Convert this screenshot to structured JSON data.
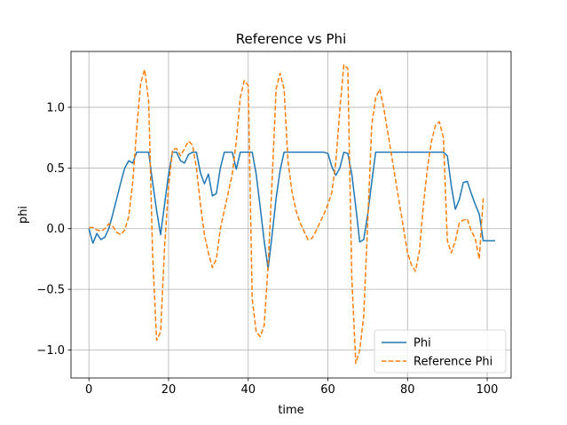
{
  "chart_data": {
    "type": "line",
    "title": "Reference vs Phi",
    "xlabel": "time",
    "ylabel": "phi",
    "xlim": [
      -4.5,
      106
    ],
    "ylim": [
      -1.23,
      1.46
    ],
    "xticks": [
      0,
      20,
      40,
      60,
      80,
      100
    ],
    "xtick_labels": [
      "0",
      "20",
      "40",
      "60",
      "80",
      "100"
    ],
    "yticks": [
      -1.0,
      -0.5,
      0.0,
      0.5,
      1.0
    ],
    "ytick_labels": [
      "−1.0",
      "−0.5",
      "0.0",
      "0.5",
      "1.0"
    ],
    "grid": true,
    "legend_position": "lower right",
    "series": [
      {
        "name": "Phi",
        "color": "#1f77b4",
        "linestyle": "solid",
        "x": [
          0,
          1,
          2,
          3,
          4,
          5,
          6,
          7,
          8,
          9,
          10,
          11,
          12,
          13,
          14,
          15,
          16,
          17,
          18,
          19,
          20,
          21,
          22,
          23,
          24,
          25,
          26,
          27,
          28,
          29,
          30,
          31,
          32,
          33,
          34,
          35,
          36,
          37,
          38,
          39,
          40,
          41,
          42,
          43,
          44,
          45,
          46,
          47,
          48,
          49,
          50,
          51,
          52,
          53,
          54,
          55,
          56,
          57,
          58,
          59,
          60,
          61,
          62,
          63,
          64,
          65,
          66,
          67,
          68,
          69,
          70,
          71,
          72,
          73,
          74,
          75,
          76,
          77,
          78,
          79,
          80,
          81,
          82,
          83,
          84,
          85,
          86,
          87,
          88,
          89,
          90,
          91,
          92,
          93,
          94,
          95,
          96,
          97,
          98,
          99,
          100,
          101,
          102
        ],
        "y": [
          0.0,
          -0.12,
          -0.04,
          -0.09,
          -0.07,
          0.0,
          0.12,
          0.25,
          0.38,
          0.5,
          0.56,
          0.54,
          0.63,
          0.63,
          0.63,
          0.63,
          0.38,
          0.15,
          -0.05,
          0.2,
          0.45,
          0.63,
          0.63,
          0.56,
          0.54,
          0.61,
          0.63,
          0.63,
          0.46,
          0.37,
          0.45,
          0.27,
          0.29,
          0.5,
          0.63,
          0.63,
          0.63,
          0.49,
          0.63,
          0.63,
          0.63,
          0.63,
          0.45,
          0.18,
          -0.1,
          -0.33,
          -0.05,
          0.25,
          0.48,
          0.63,
          0.63,
          0.63,
          0.63,
          0.63,
          0.63,
          0.63,
          0.63,
          0.63,
          0.63,
          0.63,
          0.62,
          0.51,
          0.44,
          0.5,
          0.63,
          0.62,
          0.45,
          0.18,
          -0.11,
          -0.09,
          0.12,
          0.38,
          0.63,
          0.63,
          0.63,
          0.63,
          0.63,
          0.63,
          0.63,
          0.63,
          0.63,
          0.63,
          0.63,
          0.63,
          0.63,
          0.63,
          0.63,
          0.63,
          0.63,
          0.63,
          0.6,
          0.35,
          0.16,
          0.24,
          0.38,
          0.39,
          0.29,
          0.2,
          0.12,
          -0.1,
          -0.1,
          -0.1,
          -0.1
        ]
      },
      {
        "name": "Reference Phi",
        "color": "#ff7f0e",
        "linestyle": "dashed",
        "x": [
          0,
          1,
          2,
          3,
          4,
          5,
          6,
          7,
          8,
          9,
          10,
          11,
          12,
          13,
          14,
          15,
          16,
          17,
          18,
          19,
          20,
          21,
          22,
          23,
          24,
          25,
          26,
          27,
          28,
          29,
          30,
          31,
          32,
          33,
          34,
          35,
          36,
          37,
          38,
          39,
          40,
          41,
          42,
          43,
          44,
          45,
          46,
          47,
          48,
          49,
          50,
          51,
          52,
          53,
          54,
          55,
          56,
          57,
          58,
          59,
          60,
          61,
          62,
          63,
          64,
          65,
          66,
          67,
          68,
          69,
          70,
          71,
          72,
          73,
          74,
          75,
          76,
          77,
          78,
          79,
          80,
          81,
          82,
          83,
          84,
          85,
          86,
          87,
          88,
          89,
          90,
          91,
          92,
          93,
          94,
          95,
          96,
          97,
          98,
          99
        ],
        "y": [
          0.01,
          0.01,
          -0.01,
          -0.02,
          0.0,
          0.04,
          0.02,
          -0.03,
          -0.05,
          -0.01,
          0.1,
          0.38,
          0.82,
          1.2,
          1.31,
          1.05,
          -0.22,
          -0.92,
          -0.85,
          -0.15,
          0.35,
          0.65,
          0.66,
          0.6,
          0.66,
          0.72,
          0.69,
          0.5,
          0.2,
          -0.05,
          -0.2,
          -0.32,
          -0.25,
          0.0,
          0.15,
          0.3,
          0.45,
          0.72,
          1.08,
          1.22,
          1.18,
          -0.58,
          -0.85,
          -0.89,
          -0.8,
          -0.3,
          0.4,
          1.15,
          1.28,
          1.15,
          0.55,
          0.3,
          0.15,
          0.05,
          -0.02,
          -0.09,
          -0.08,
          -0.02,
          0.05,
          0.12,
          0.2,
          0.3,
          0.55,
          0.98,
          1.35,
          1.32,
          -0.4,
          -1.11,
          -1.0,
          -0.72,
          0.05,
          0.85,
          1.08,
          1.15,
          1.0,
          0.8,
          0.6,
          0.4,
          0.2,
          0.0,
          -0.2,
          -0.3,
          -0.35,
          -0.18,
          0.2,
          0.5,
          0.72,
          0.85,
          0.88,
          0.75,
          -0.1,
          -0.2,
          -0.1,
          0.05,
          0.07,
          0.08,
          -0.02,
          -0.08,
          -0.25,
          0.25
        ]
      }
    ]
  }
}
